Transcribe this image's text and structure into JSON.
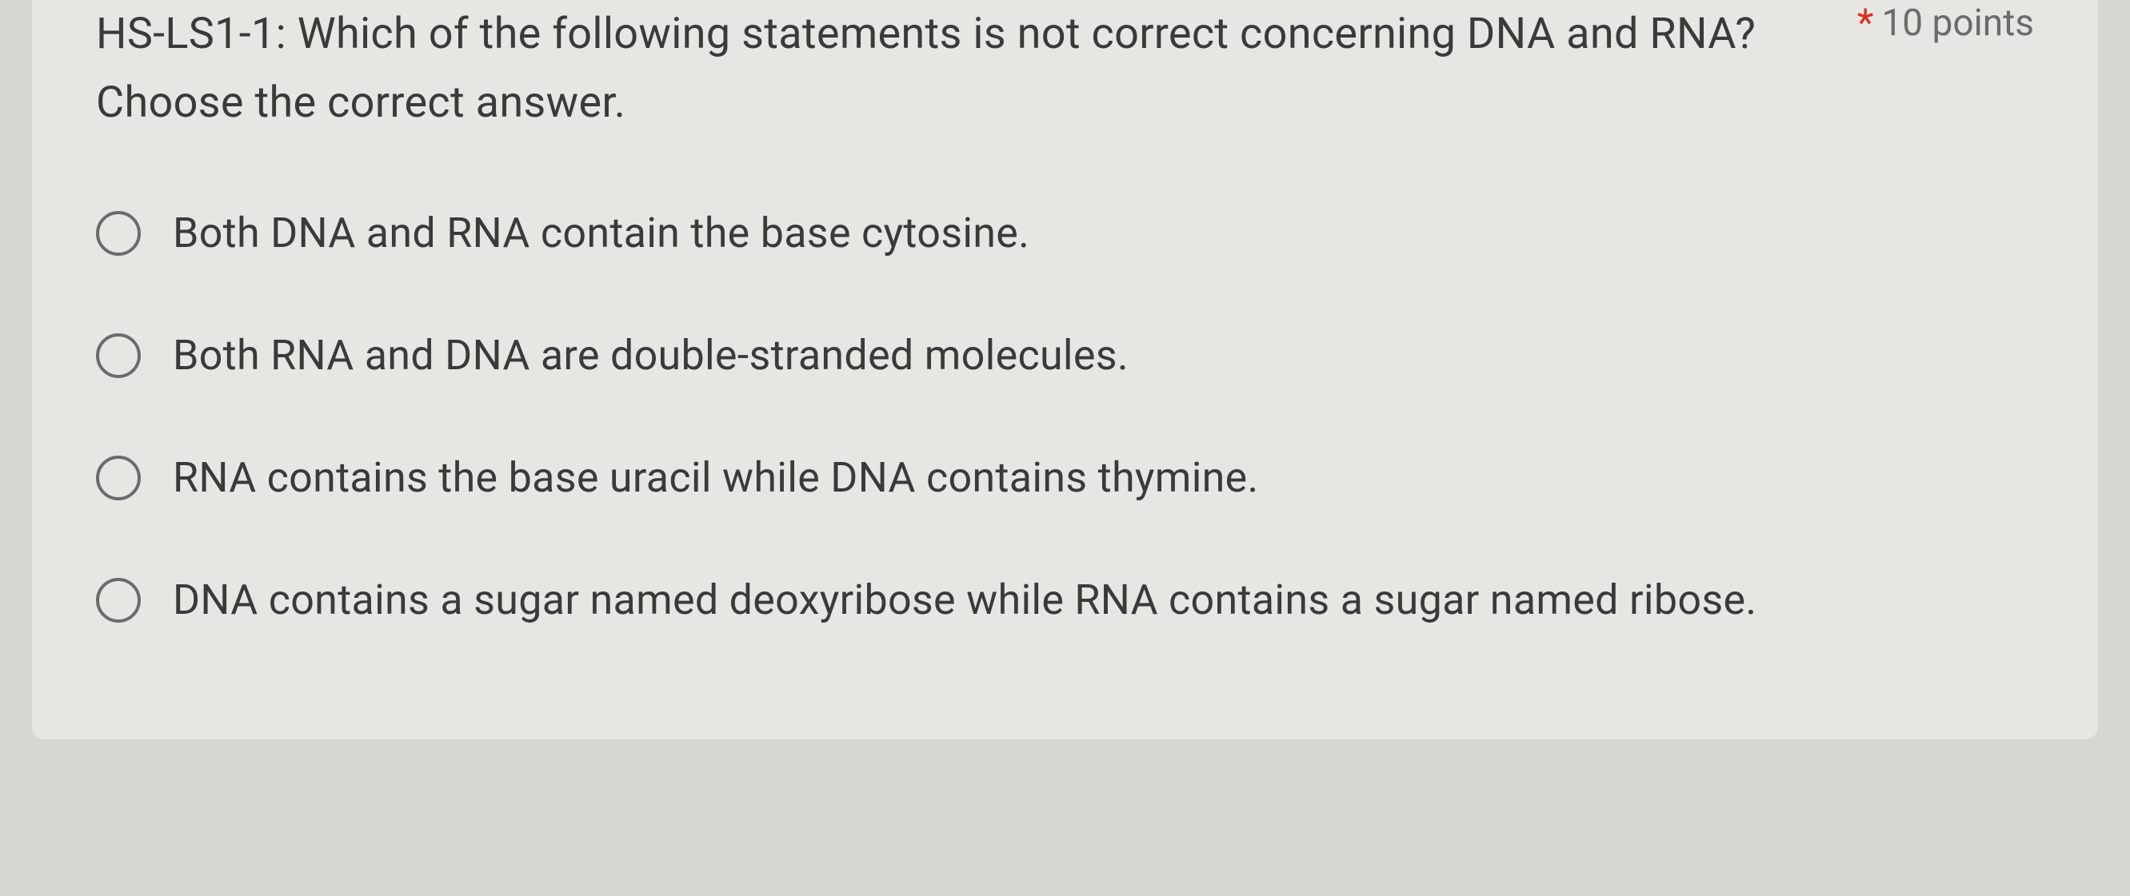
{
  "question": {
    "prefix": "HS-LS1-1:",
    "text": "HS-LS1-1: Which of the following statements is not correct concerning DNA and RNA? Choose the correct answer.",
    "required": true,
    "points_label": "10 points"
  },
  "options": [
    {
      "label": "Both DNA and RNA contain the base cytosine.",
      "selected": false
    },
    {
      "label": "Both RNA and DNA are double-stranded molecules.",
      "selected": false
    },
    {
      "label": "RNA contains the base uracil while DNA contains thymine.",
      "selected": false
    },
    {
      "label": "DNA contains a sugar named deoxyribose while RNA contains a sugar named ribose.",
      "selected": false
    }
  ],
  "colors": {
    "background": "#d8d6d2",
    "card_background": "#e8e6e2",
    "text_primary": "#3a3a3a",
    "text_secondary": "#6b6b6b",
    "required": "#d93025",
    "radio_border": "#6b6b6b"
  }
}
